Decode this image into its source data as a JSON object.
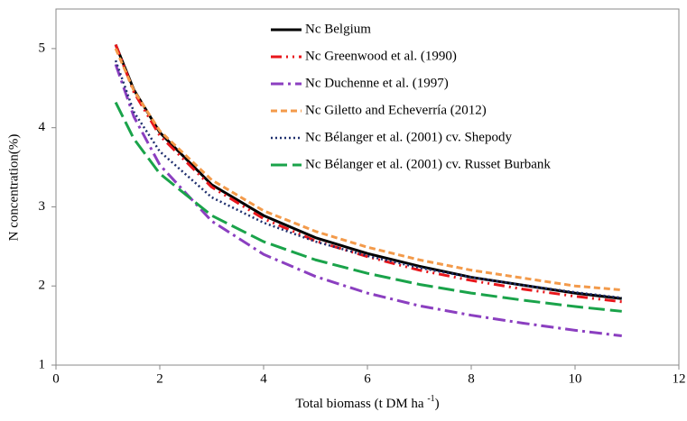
{
  "chart_data": {
    "type": "line",
    "x_label": [
      "Total biomass (t DM ha ",
      "-1",
      ")"
    ],
    "y_label": "N concentration(%)",
    "x": [
      1.15,
      1.5,
      2,
      3,
      4,
      5,
      6,
      7,
      8,
      9,
      10,
      10.9
    ],
    "xlim": [
      0,
      12
    ],
    "xticks": [
      0,
      2,
      4,
      6,
      8,
      10,
      12
    ],
    "ylim": [
      1,
      5.5
    ],
    "yticks": [
      1,
      2,
      3,
      4,
      5
    ],
    "legend": "top-center",
    "series": [
      {
        "name": "Nc Belgium",
        "color": "#000000",
        "dash": "none",
        "width": 3,
        "values": [
          5.05,
          4.48,
          3.94,
          3.28,
          2.89,
          2.61,
          2.41,
          2.25,
          2.11,
          2.01,
          1.91,
          1.84
        ]
      },
      {
        "name": "Nc Greenwood et al. (1990)",
        "color": "#e8161b",
        "dash": "12,5,2,5,2,5",
        "width": 3,
        "values": [
          5.05,
          4.45,
          3.9,
          3.25,
          2.85,
          2.57,
          2.37,
          2.2,
          2.07,
          1.96,
          1.87,
          1.8
        ]
      },
      {
        "name": "Nc Duchenne et al. (1997)",
        "color": "#8b3fc0",
        "dash": "14,5,3,5",
        "width": 3,
        "values": [
          4.8,
          4.14,
          3.53,
          2.82,
          2.4,
          2.12,
          1.91,
          1.75,
          1.63,
          1.53,
          1.44,
          1.37
        ]
      },
      {
        "name": "Nc Giletto and Echeverría (2012)",
        "color": "#f39a4a",
        "dash": "7,4",
        "width": 3,
        "values": [
          5.0,
          4.47,
          3.96,
          3.34,
          2.95,
          2.69,
          2.49,
          2.33,
          2.2,
          2.1,
          2.0,
          1.95
        ]
      },
      {
        "name": "Nc Bélanger et al. (2001) cv. Shepody",
        "color": "#1f2f6e",
        "dash": "2,3",
        "width": 2.5,
        "values": [
          4.85,
          4.2,
          3.7,
          3.12,
          2.8,
          2.56,
          2.38,
          2.23,
          2.11,
          2.01,
          1.92,
          1.85
        ]
      },
      {
        "name": "Nc Bélanger et al. (2001) cv. Russet Burbank",
        "color": "#1aa34a",
        "dash": "18,6",
        "width": 3,
        "values": [
          4.32,
          3.86,
          3.42,
          2.89,
          2.56,
          2.33,
          2.16,
          2.02,
          1.91,
          1.82,
          1.74,
          1.68
        ]
      }
    ]
  }
}
